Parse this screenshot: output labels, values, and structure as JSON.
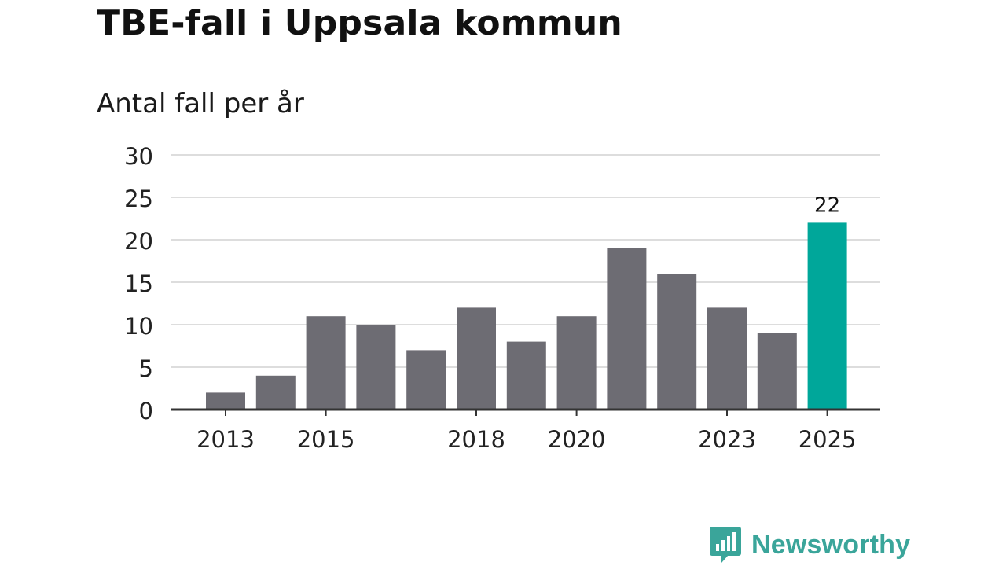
{
  "title": "TBE-fall i Uppsala kommun",
  "subtitle": "Antal fall per år",
  "brand": {
    "name": "Newsworthy",
    "icon": "newsworthy-logo-icon",
    "color": "#3aa59a"
  },
  "colors": {
    "bar": "#6d6c73",
    "highlight": "#00a79a",
    "grid": "#dddddd",
    "axis": "#333333"
  },
  "chart_data": {
    "type": "bar",
    "title": "TBE-fall i Uppsala kommun",
    "subtitle": "Antal fall per år",
    "categories": [
      "2013",
      "2014",
      "2015",
      "2016",
      "2017",
      "2018",
      "2019",
      "2020",
      "2021",
      "2022",
      "2023",
      "2024",
      "2025"
    ],
    "values": [
      2,
      4,
      11,
      10,
      7,
      12,
      8,
      11,
      19,
      16,
      12,
      9,
      22
    ],
    "x_tick_labels": [
      "2013",
      "2015",
      "2018",
      "2020",
      "2023",
      "2025"
    ],
    "y_ticks": [
      0,
      5,
      10,
      15,
      20,
      25,
      30
    ],
    "ylim": [
      0,
      30
    ],
    "highlight": {
      "category": "2025",
      "label": "22"
    },
    "grid": true,
    "xlabel": "",
    "ylabel": ""
  }
}
